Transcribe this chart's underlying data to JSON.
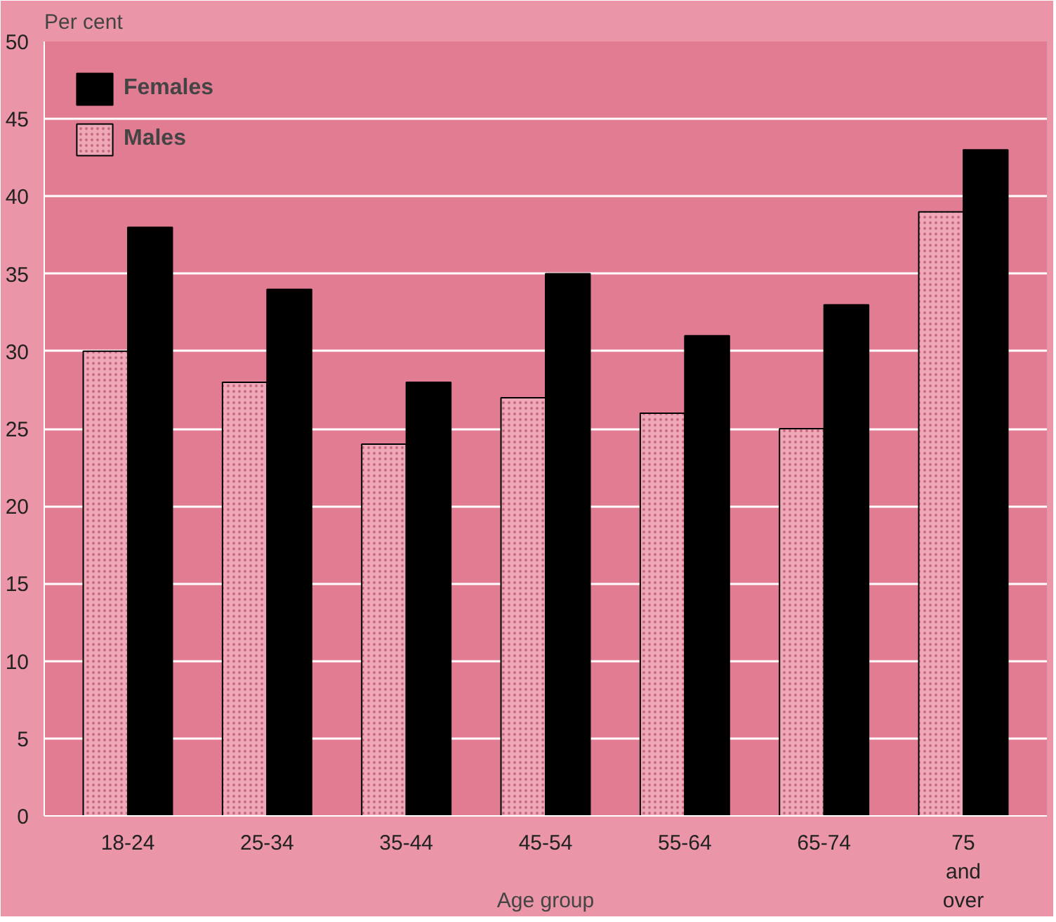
{
  "chart_data": {
    "type": "bar",
    "xlabel": "Age group",
    "ylabel": "Per cent",
    "categories": [
      "18-24",
      "25-34",
      "35-44",
      "45-54",
      "55-64",
      "65-74",
      "75\nand\nover"
    ],
    "series": [
      {
        "name": "Males",
        "color": "#eea7b6",
        "values": [
          30,
          28,
          24,
          27,
          26,
          25,
          39
        ]
      },
      {
        "name": "Females",
        "color": "#000000",
        "values": [
          38,
          34,
          28,
          35,
          31,
          33,
          43
        ]
      }
    ],
    "ylim": [
      0,
      50
    ],
    "yticks": [
      0,
      5,
      10,
      15,
      20,
      25,
      30,
      35,
      40,
      45,
      50
    ],
    "grid": "y",
    "legend": "top left"
  }
}
